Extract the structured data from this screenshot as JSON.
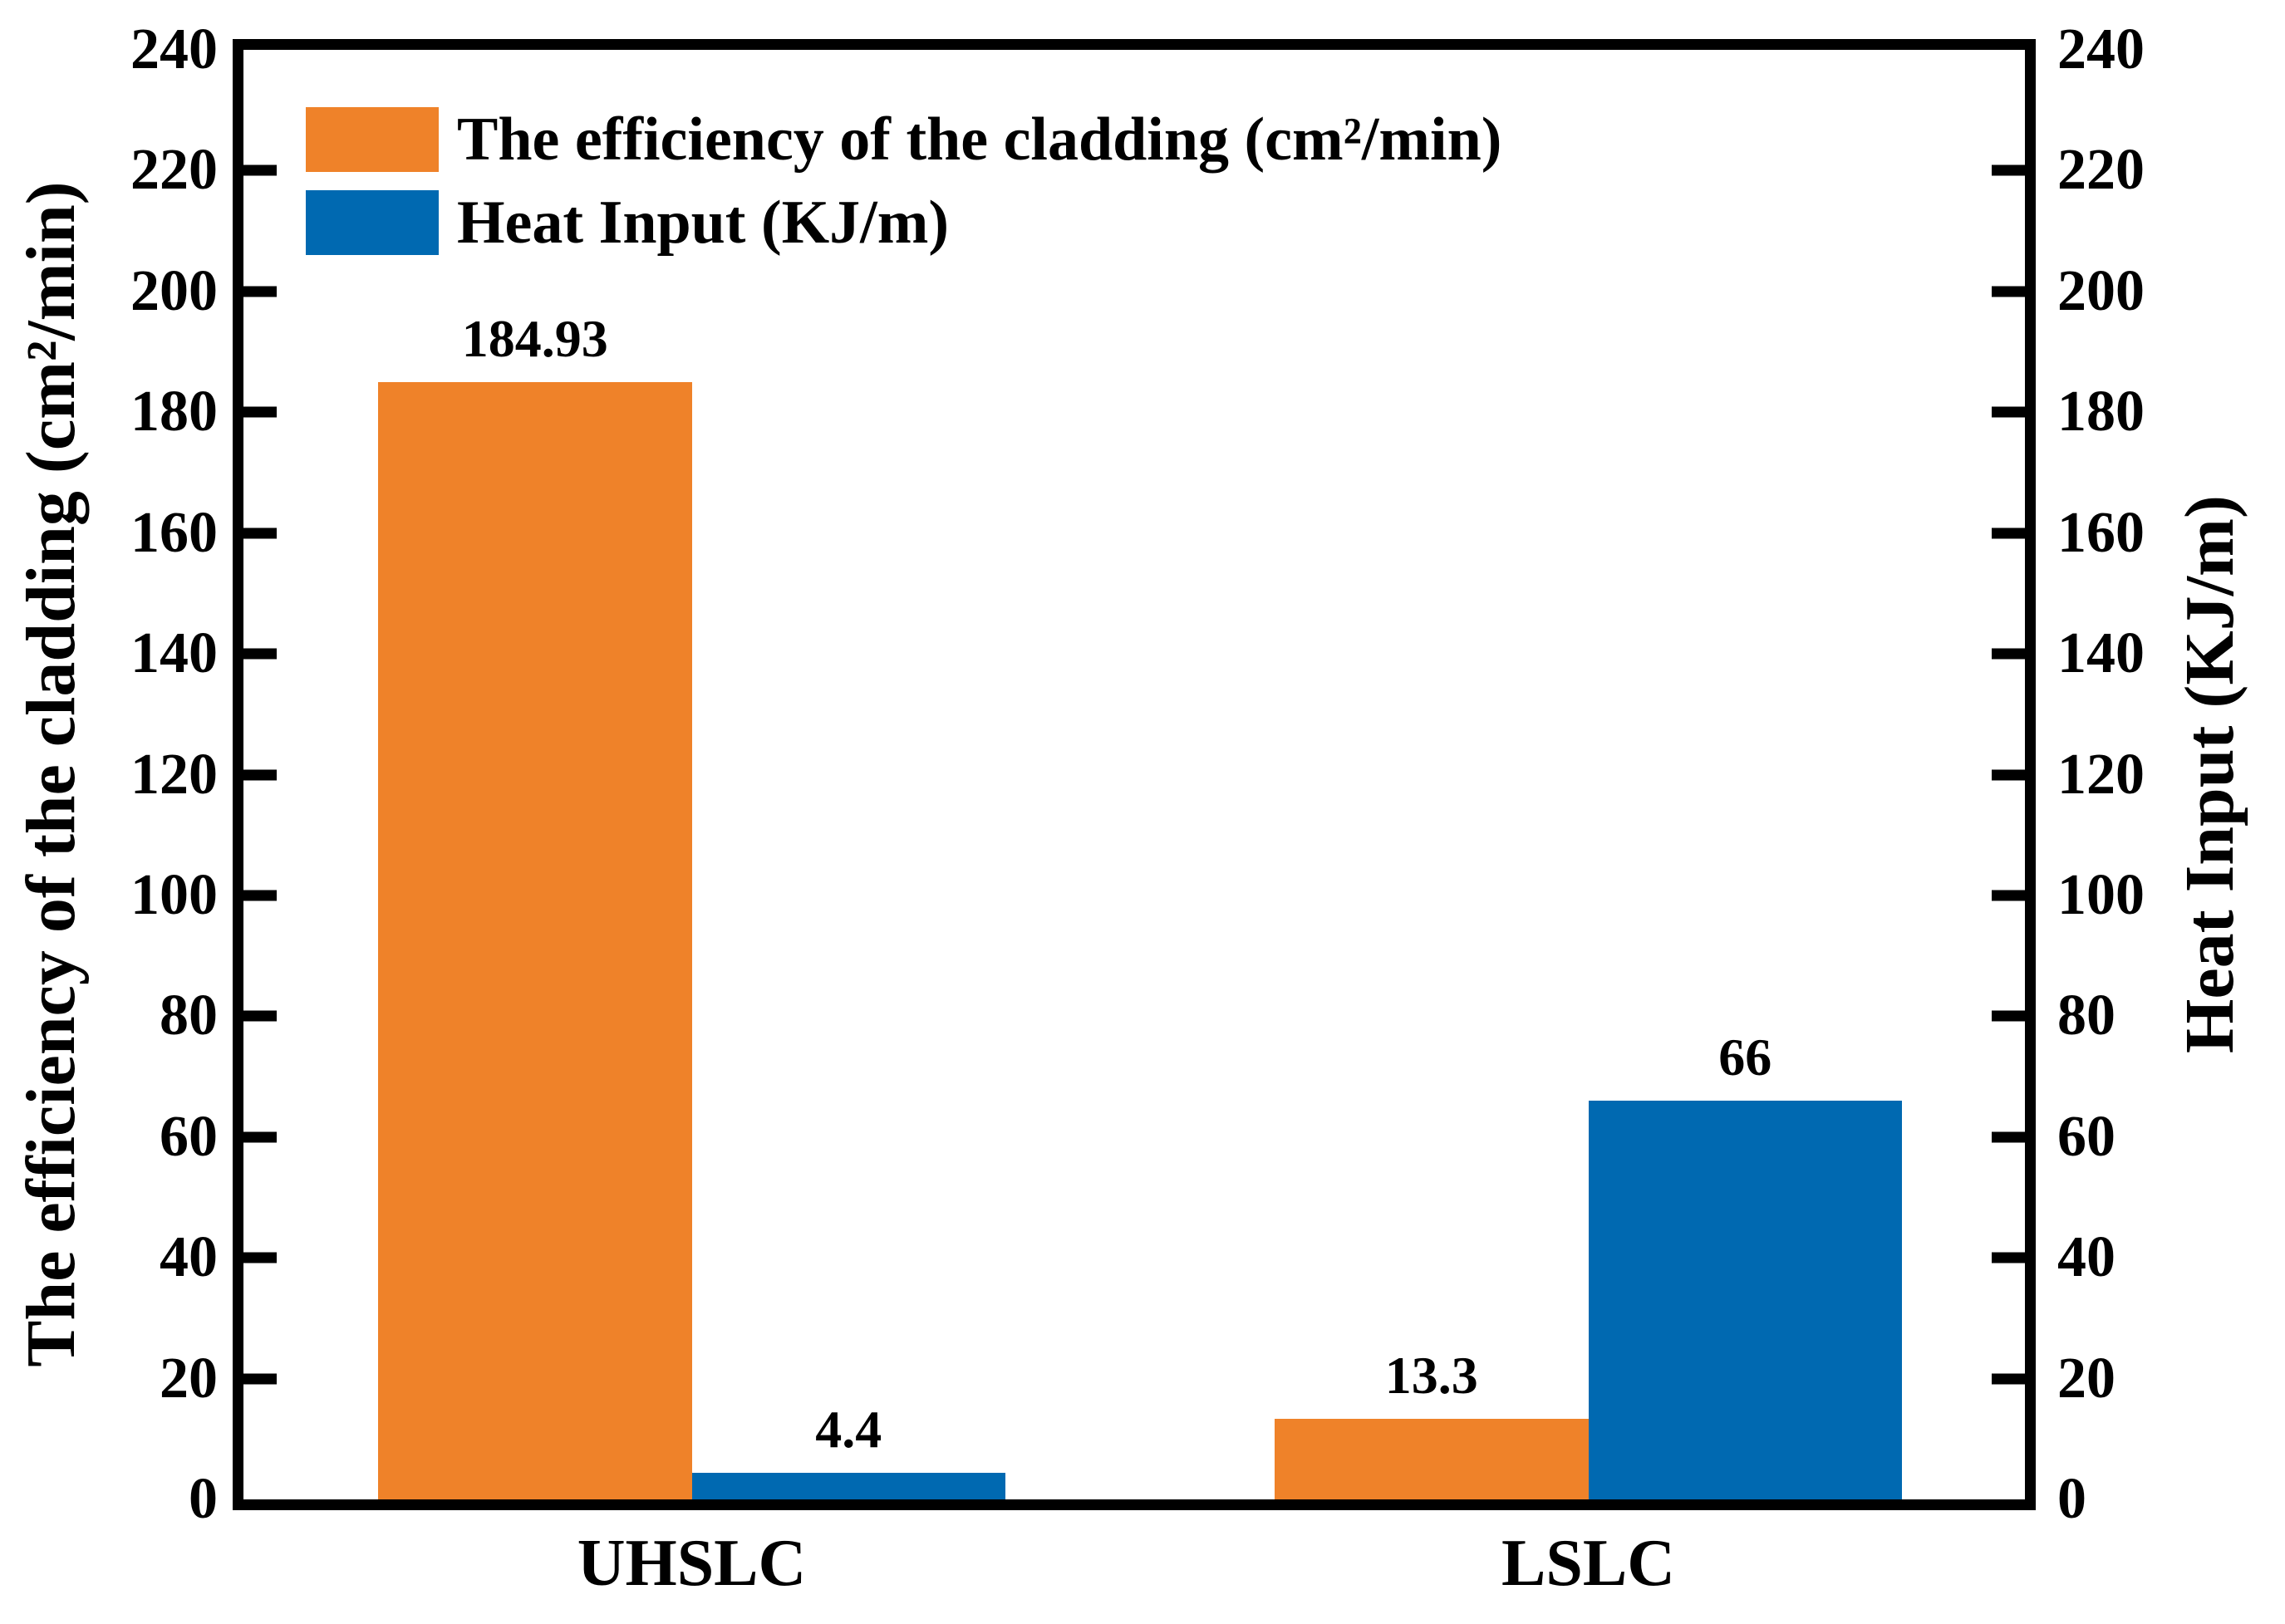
{
  "chart_data": {
    "type": "bar",
    "categories": [
      "UHSLC",
      "LSLC"
    ],
    "series": [
      {
        "name": "The efficiency of the cladding (cm²/min)",
        "values": [
          184.93,
          13.3
        ],
        "value_labels": [
          "184.93",
          "13.3"
        ],
        "color": "#EF8229"
      },
      {
        "name": "Heat Input (KJ/m)",
        "values": [
          4.4,
          66
        ],
        "value_labels": [
          "4.4",
          "66"
        ],
        "color": "#0069B1"
      }
    ],
    "left_axis": {
      "label": "The efficiency of the cladding (cm²/min)",
      "min": 0,
      "max": 240,
      "step": 20
    },
    "right_axis": {
      "label": "Heat Input (KJ/m)",
      "min": 0,
      "max": 240,
      "step": 20
    },
    "legend": {
      "position": "top-left",
      "entries": [
        "The efficiency of the cladding (cm²/min)",
        "Heat Input (KJ/m)"
      ]
    },
    "grid": false,
    "background_color": "#FFFFFF",
    "frame_color": "#000000"
  }
}
